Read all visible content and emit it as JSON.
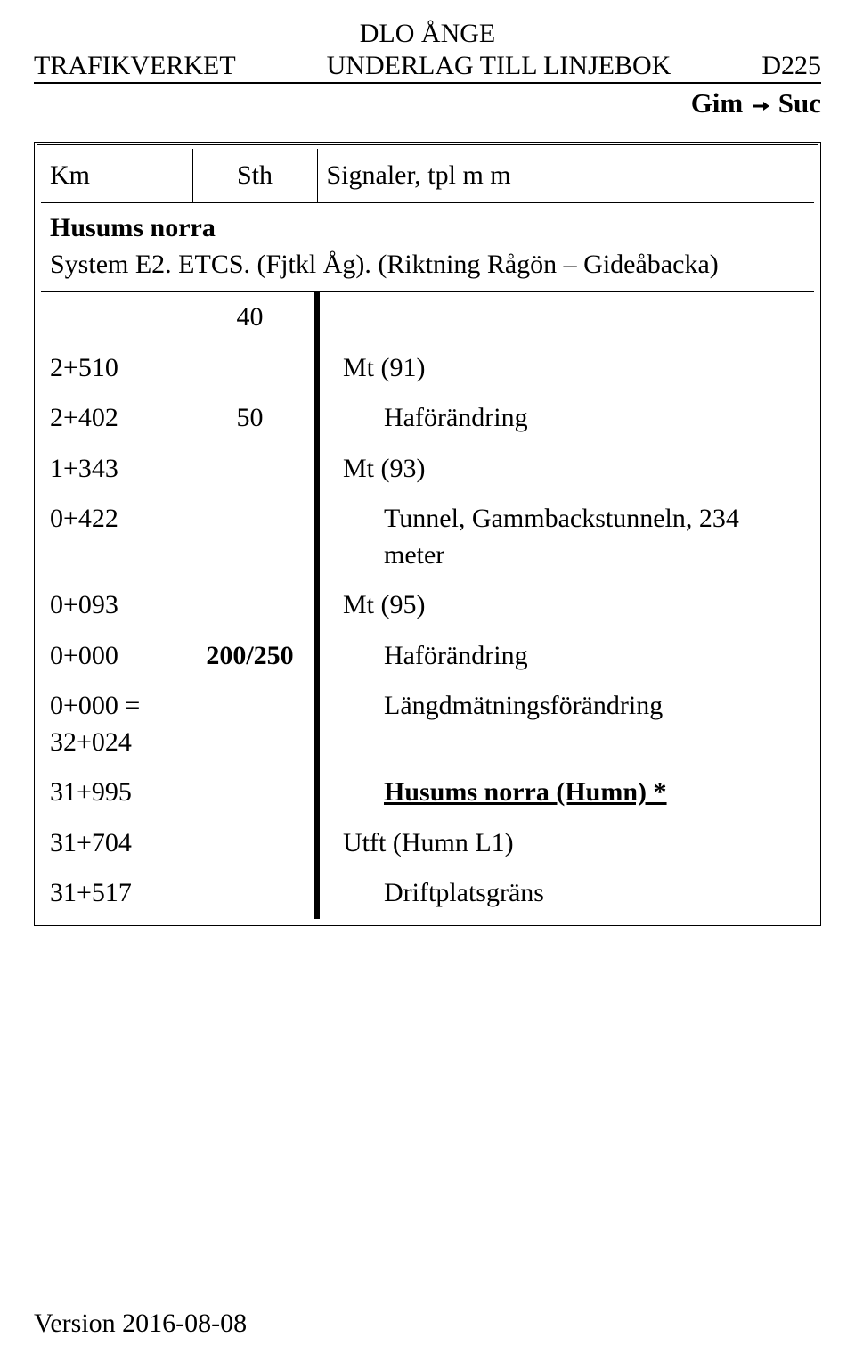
{
  "header": {
    "top_center": "DLO ÅNGE",
    "left": "TRAFIKVERKET",
    "center": "UNDERLAG TILL LINJEBOK",
    "right": "D225",
    "route_from": "Gim",
    "route_to": "Suc"
  },
  "table": {
    "columns": {
      "km": "Km",
      "sth": "Sth",
      "sig": "Signaler, tpl m m"
    },
    "sub": {
      "title": "Husums norra",
      "system": "System E2. ETCS. (Fjtkl Åg). (Riktning Rågön – Gideåbacka)"
    },
    "rows": [
      {
        "km": "",
        "sth": "40",
        "sig": ""
      },
      {
        "km": "2+510",
        "sth": "",
        "sig": "Mt (91)"
      },
      {
        "km": "2+402",
        "sth": "50",
        "sig": "Haförändring",
        "sig_indent": true
      },
      {
        "km": "1+343",
        "sth": "",
        "sig": "Mt (93)"
      },
      {
        "km": "0+422",
        "sth": "",
        "sig": "Tunnel, Gammbackstunneln, 234 meter",
        "sig_indent": true
      },
      {
        "km": "0+093",
        "sth": "",
        "sig": "Mt (95)"
      },
      {
        "km": "0+000",
        "sth": "200/250",
        "sig": "Haförändring",
        "sth_bold": true,
        "sig_indent": true
      },
      {
        "km": "0+000 = 32+024",
        "sth": "",
        "sig": "Längdmätningsförändring",
        "sig_indent": true
      },
      {
        "km": "31+995",
        "sth": "",
        "sig": "Husums norra (Humn) *",
        "sig_bold": true,
        "sig_underline": true,
        "sig_indent": true
      },
      {
        "km": "31+704",
        "sth": "",
        "sig": "Utft (Humn L1)"
      },
      {
        "km": "31+517",
        "sth": "",
        "sig": "Driftplatsgräns",
        "sig_indent": true
      }
    ]
  },
  "footer": {
    "version": "Version 2016-08-08"
  }
}
